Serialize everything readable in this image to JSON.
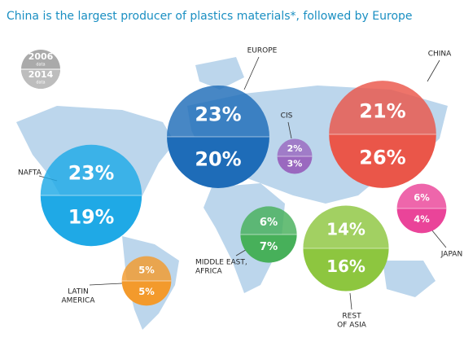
{
  "chart_data": {
    "type": "bubble-map",
    "title": "China is the largest producer of plastics materials*, followed by Europe",
    "legend": {
      "top": [
        "2006",
        "data"
      ],
      "bottom": [
        "2014",
        "data"
      ]
    },
    "regions": [
      {
        "name": [
          "NAFTA"
        ],
        "color": "#1fa9e6",
        "values": [
          23,
          19
        ],
        "value_labels": [
          "23%",
          "19%"
        ]
      },
      {
        "name": [
          "EUROPE"
        ],
        "color": "#1e6cb8",
        "values": [
          23,
          20
        ],
        "value_labels": [
          "23%",
          "20%"
        ]
      },
      {
        "name": [
          "CIS"
        ],
        "color": "#9a68bf",
        "values": [
          2,
          3
        ],
        "value_labels": [
          "2%",
          "3%"
        ]
      },
      {
        "name": [
          "CHINA"
        ],
        "color": "#ea5649",
        "values": [
          21,
          26
        ],
        "value_labels": [
          "21%",
          "26%"
        ]
      },
      {
        "name": [
          "JAPAN"
        ],
        "color": "#ea4499",
        "values": [
          6,
          4
        ],
        "value_labels": [
          "6%",
          "4%"
        ]
      },
      {
        "name": [
          "MIDDLE EAST,",
          "AFRICA"
        ],
        "color": "#47b05a",
        "values": [
          6,
          7
        ],
        "value_labels": [
          "6%",
          "7%"
        ]
      },
      {
        "name": [
          "REST",
          "OF ASIA"
        ],
        "color": "#8dc63f",
        "values": [
          14,
          16
        ],
        "value_labels": [
          "14%",
          "16%"
        ]
      },
      {
        "name": [
          "LATIN",
          "AMERICA"
        ],
        "color": "#f39a2c",
        "values": [
          5,
          5
        ],
        "value_labels": [
          "5%",
          "5%"
        ]
      }
    ]
  }
}
